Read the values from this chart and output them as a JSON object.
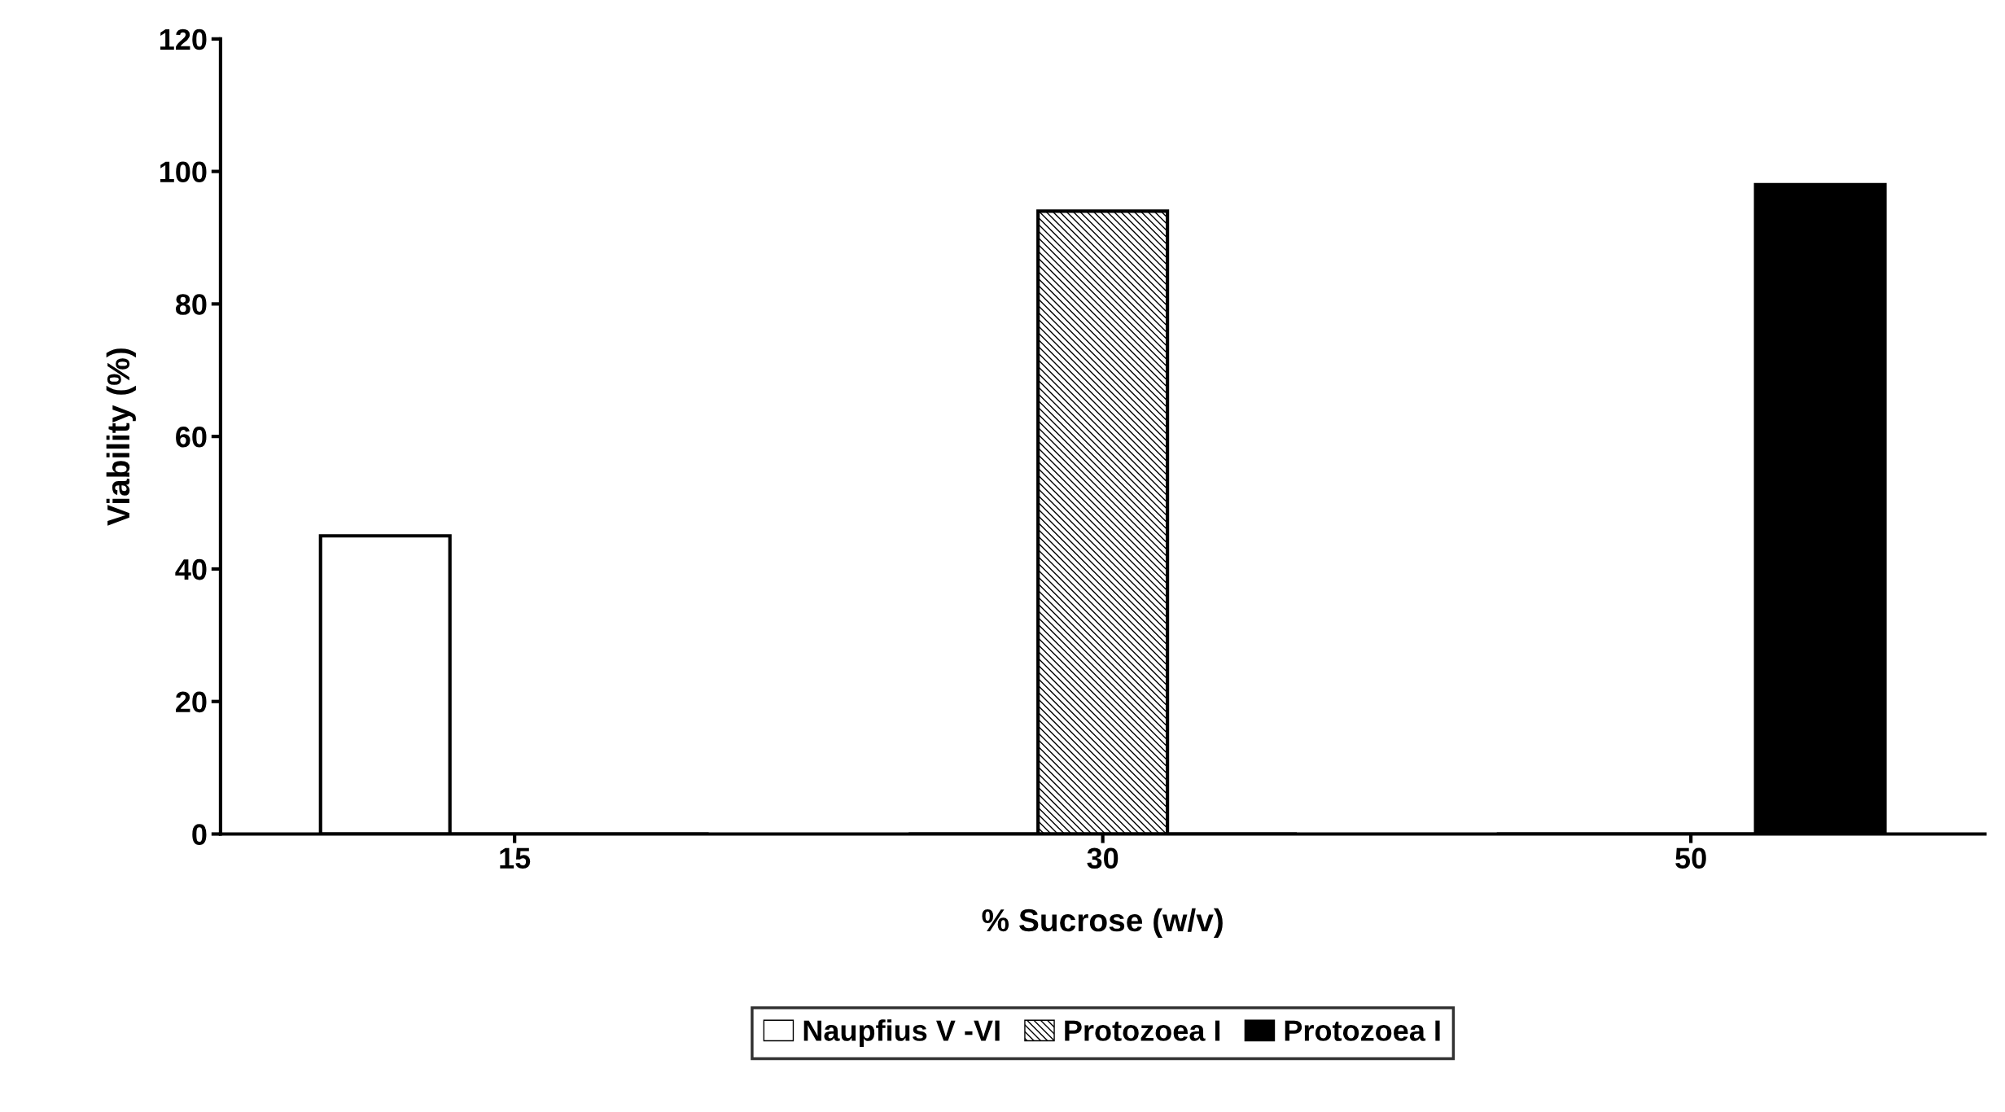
{
  "chart_data": {
    "type": "bar",
    "xlabel": "% Sucrose (w/v)",
    "ylabel": "Viability (%)",
    "categories": [
      "15",
      "30",
      "50"
    ],
    "series": [
      {
        "name": "Naupfius V -VI",
        "color": "#ffffff",
        "values": [
          45,
          0,
          0
        ]
      },
      {
        "name": "Protozoea I",
        "color": "#000000",
        "values": [
          0,
          94,
          0
        ]
      },
      {
        "name": "Protozoea I",
        "color": "#000000",
        "values": [
          0,
          0,
          98
        ]
      }
    ],
    "ylim": [
      0,
      120
    ],
    "yticks": [
      0,
      20,
      40,
      60,
      80,
      100,
      120
    ],
    "grid": false,
    "legend": "bottom"
  }
}
